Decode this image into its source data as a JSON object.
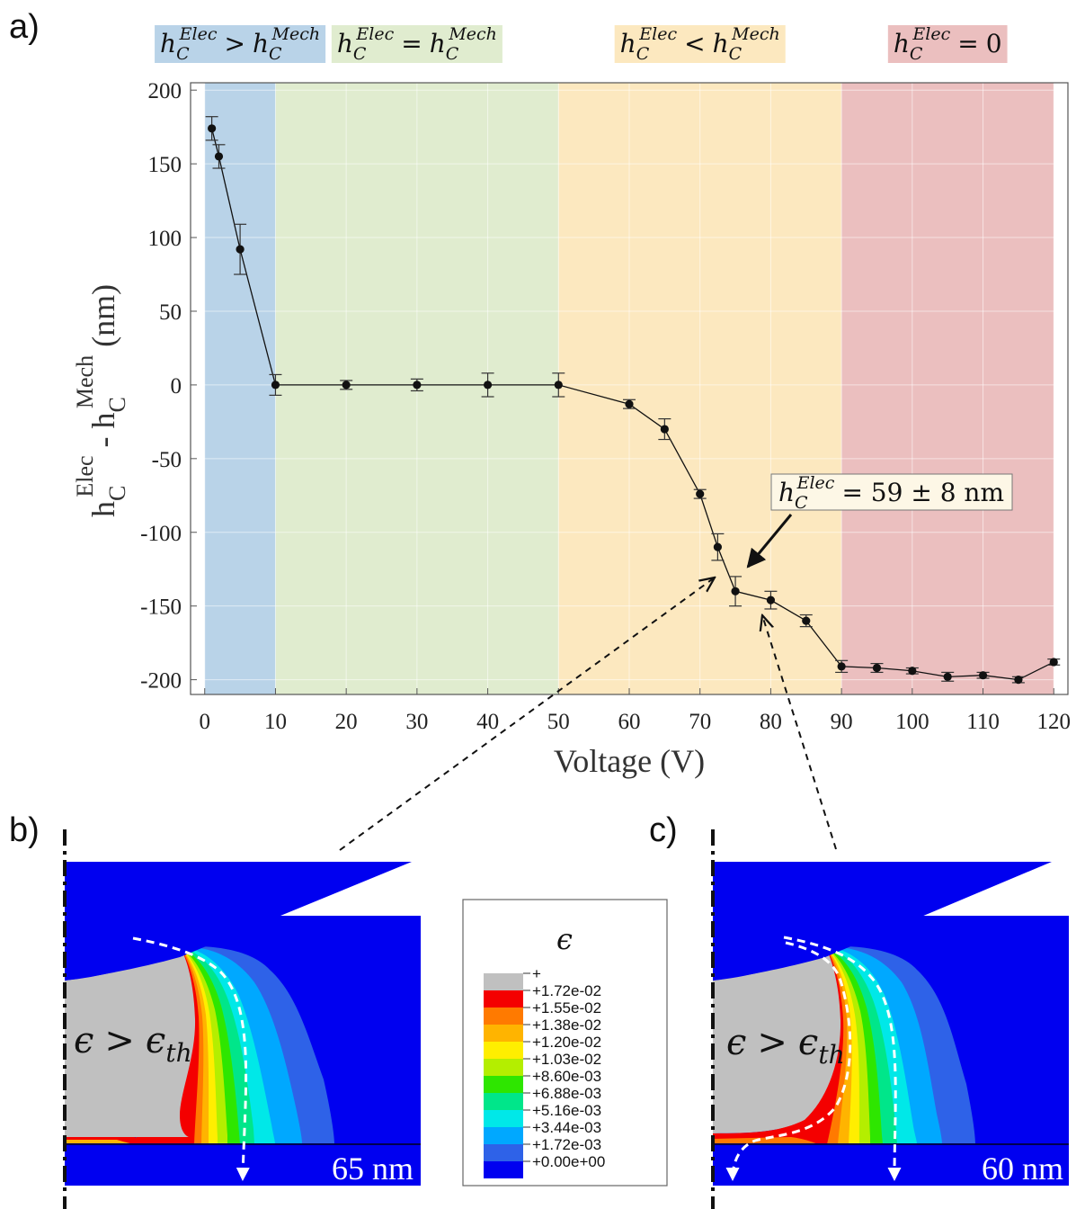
{
  "panels": {
    "a": "a)",
    "b": "b)",
    "c": "c)"
  },
  "regions": [
    {
      "x0": 0,
      "x1": 10,
      "color": "#b9d3e8",
      "lhs": "h",
      "sup": "Elec",
      "sub": "C",
      "op": ">",
      "rhs": "h",
      "rsup": "Mech",
      "rsub": "C"
    },
    {
      "x0": 10,
      "x1": 50,
      "color": "#e0eccf",
      "lhs": "h",
      "sup": "Elec",
      "sub": "C",
      "op": "=",
      "rhs": "h",
      "rsup": "Mech",
      "rsub": "C"
    },
    {
      "x0": 50,
      "x1": 90,
      "color": "#fce8bf",
      "lhs": "h",
      "sup": "Elec",
      "sub": "C",
      "op": "<",
      "rhs": "h",
      "rsup": "Mech",
      "rsub": "C"
    },
    {
      "x0": 90,
      "x1": 120,
      "color": "#ebbfbf",
      "lhs": "h",
      "sup": "Elec",
      "sub": "C",
      "op": "=",
      "rhs": "0",
      "rsup": "",
      "rsub": ""
    }
  ],
  "chart_data": {
    "type": "line",
    "xlabel": "Voltage (V)",
    "ylabel": "h_C^Elec - h_C^Mech (nm)",
    "ylabel_parts": {
      "h1": "h",
      "sub1": "C",
      "sup1": "Elec",
      "dash": " - ",
      "h2": "h",
      "sub2": "C",
      "sup2": "Mech",
      "unit": " (nm)"
    },
    "xlim": [
      -2,
      122
    ],
    "ylim": [
      -210,
      205
    ],
    "xticks": [
      0,
      10,
      20,
      30,
      40,
      50,
      60,
      70,
      80,
      90,
      100,
      110,
      120
    ],
    "yticks": [
      200,
      150,
      100,
      50,
      0,
      -50,
      -100,
      -150,
      -200
    ],
    "grid": true,
    "series": [
      {
        "x": [
          1,
          2,
          5,
          10,
          20,
          30,
          40,
          50,
          60,
          65,
          70,
          72.5,
          75,
          80,
          85,
          90,
          95,
          100,
          105,
          110,
          115,
          120
        ],
        "y": [
          174,
          155,
          92,
          0,
          0,
          0,
          0,
          0,
          -13,
          -30,
          -74,
          -110,
          -140,
          -146,
          -160,
          -191,
          -192,
          -194,
          -198,
          -197,
          -200,
          -188
        ],
        "err": [
          8,
          8,
          17,
          7,
          3,
          4,
          8,
          8,
          3,
          7,
          3,
          9,
          10,
          6,
          4,
          4,
          3,
          2,
          3,
          2,
          2,
          2
        ]
      }
    ],
    "annotation": {
      "h": "h",
      "sup": "Elec",
      "sub": "C",
      "text": "= 59 ± 8 nm"
    }
  },
  "legend": {
    "title": "ϵ",
    "labels": [
      "+",
      "+1.72e-02",
      "+1.55e-02",
      "+1.38e-02",
      "+1.20e-02",
      "+1.03e-02",
      "+8.60e-03",
      "+6.88e-03",
      "+5.16e-03",
      "+3.44e-03",
      "+1.72e-03",
      "+0.00e+00"
    ],
    "colors": [
      "#c0c0c0",
      "#f40000",
      "#ff7a00",
      "#ffb400",
      "#ffee00",
      "#b4ee00",
      "#2ee600",
      "#00e68a",
      "#00e8e8",
      "#00a8ff",
      "#2e62e8",
      "#0000f0"
    ]
  },
  "sim_b": {
    "label_eps": "ϵ",
    "label_gt": ">",
    "label_epsth": "ϵ",
    "label_th": "th",
    "scale": "65 nm"
  },
  "sim_c": {
    "label_eps": "ϵ",
    "label_gt": ">",
    "label_epsth": "ϵ",
    "label_th": "th",
    "scale": "60 nm"
  }
}
